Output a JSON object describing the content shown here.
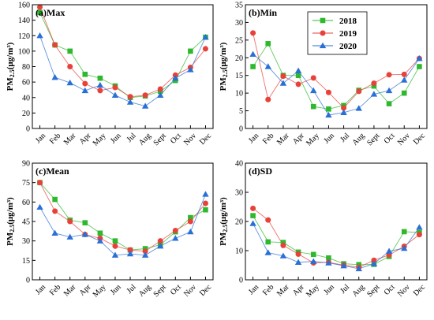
{
  "colors": {
    "2018": "#2db82d",
    "2019": "#e8413a",
    "2020": "#2a6fd6"
  },
  "ylabel_main": "PM",
  "ylabel_sub": "2.5",
  "ylabel_unit": "(μg/m³)",
  "chart_data": [
    {
      "type": "line",
      "title": "(a)Max",
      "categories": [
        "Jan",
        "Feb",
        "Mar",
        "Apr",
        "May",
        "Jun",
        "Jul",
        "Aug",
        "Sept",
        "Oct",
        "Nov",
        "Dec"
      ],
      "ylim": [
        0,
        160
      ],
      "yticks": [
        0,
        20,
        40,
        60,
        80,
        100,
        120,
        140,
        160
      ],
      "series": [
        {
          "name": "2018",
          "marker": "square",
          "values": [
            150,
            108,
            100,
            70,
            65,
            55,
            40,
            42,
            48,
            62,
            100,
            118
          ]
        },
        {
          "name": "2019",
          "marker": "circle",
          "values": [
            157,
            108,
            80,
            58,
            49,
            53,
            41,
            43,
            51,
            69,
            79,
            103
          ]
        },
        {
          "name": "2020",
          "marker": "triangle",
          "values": [
            120,
            66,
            59,
            49,
            56,
            43,
            34,
            29,
            43,
            65,
            76,
            118
          ]
        }
      ]
    },
    {
      "type": "line",
      "title": "(b)Min",
      "categories": [
        "Jan",
        "Feb",
        "Mar",
        "Apr",
        "May",
        "Jun",
        "Jul",
        "Aug",
        "Sept",
        "Oct",
        "Nov",
        "Dec"
      ],
      "ylim": [
        0,
        35
      ],
      "yticks": [
        0,
        5,
        10,
        15,
        20,
        25,
        30,
        35
      ],
      "legend": "top-center",
      "series": [
        {
          "name": "2018",
          "marker": "square",
          "values": [
            17.5,
            24,
            15,
            15,
            6.2,
            5.5,
            6.5,
            10.8,
            12,
            7,
            10,
            17.5
          ]
        },
        {
          "name": "2019",
          "marker": "circle",
          "values": [
            27,
            8.2,
            14.8,
            12.5,
            14.3,
            10.2,
            5.8,
            10.5,
            12.8,
            15.2,
            15.3,
            19.8
          ]
        },
        {
          "name": "2020",
          "marker": "triangle",
          "values": [
            21,
            17.5,
            12.8,
            16.3,
            10.7,
            3.8,
            4.5,
            5.7,
            9.7,
            10.7,
            13.7,
            19.8
          ]
        }
      ]
    },
    {
      "type": "line",
      "title": "(c)Mean",
      "categories": [
        "Jan",
        "Feb",
        "Mar",
        "Apr",
        "May",
        "Jun",
        "Jul",
        "Aug",
        "Sept",
        "Oct",
        "Nov",
        "Dec"
      ],
      "ylim": [
        0,
        90
      ],
      "yticks": [
        0,
        15,
        30,
        45,
        60,
        75,
        90
      ],
      "series": [
        {
          "name": "2018",
          "marker": "square",
          "values": [
            75,
            62,
            46,
            44,
            36,
            30,
            23,
            24,
            27,
            37,
            48,
            54
          ]
        },
        {
          "name": "2019",
          "marker": "circle",
          "values": [
            75,
            53,
            45,
            35,
            32,
            26,
            23,
            22,
            30,
            38,
            45,
            59
          ]
        },
        {
          "name": "2020",
          "marker": "triangle",
          "values": [
            56,
            36,
            33,
            35,
            30,
            19,
            20,
            19,
            26,
            32,
            37,
            66
          ]
        }
      ]
    },
    {
      "type": "line",
      "title": "(d)SD",
      "categories": [
        "Jan",
        "Feb",
        "Mar",
        "Apr",
        "May",
        "Jun",
        "Jul",
        "Aug",
        "Sept",
        "Oct",
        "Nov",
        "Dec"
      ],
      "ylim": [
        0,
        40
      ],
      "yticks": [
        0,
        10,
        20,
        30,
        40
      ],
      "series": [
        {
          "name": "2018",
          "marker": "square",
          "values": [
            22,
            13,
            12.8,
            9.5,
            8.7,
            7.5,
            5.5,
            5.2,
            5.3,
            8,
            16.5,
            16.2
          ]
        },
        {
          "name": "2019",
          "marker": "circle",
          "values": [
            24.5,
            20.5,
            11.8,
            8.8,
            5.8,
            6,
            5,
            4.3,
            6.7,
            8.5,
            11.5,
            15.5
          ]
        },
        {
          "name": "2020",
          "marker": "triangle",
          "values": [
            19.3,
            9.3,
            8.2,
            6,
            6.3,
            5.8,
            4.8,
            3.8,
            5.5,
            9.8,
            10.8,
            18
          ]
        }
      ]
    }
  ]
}
